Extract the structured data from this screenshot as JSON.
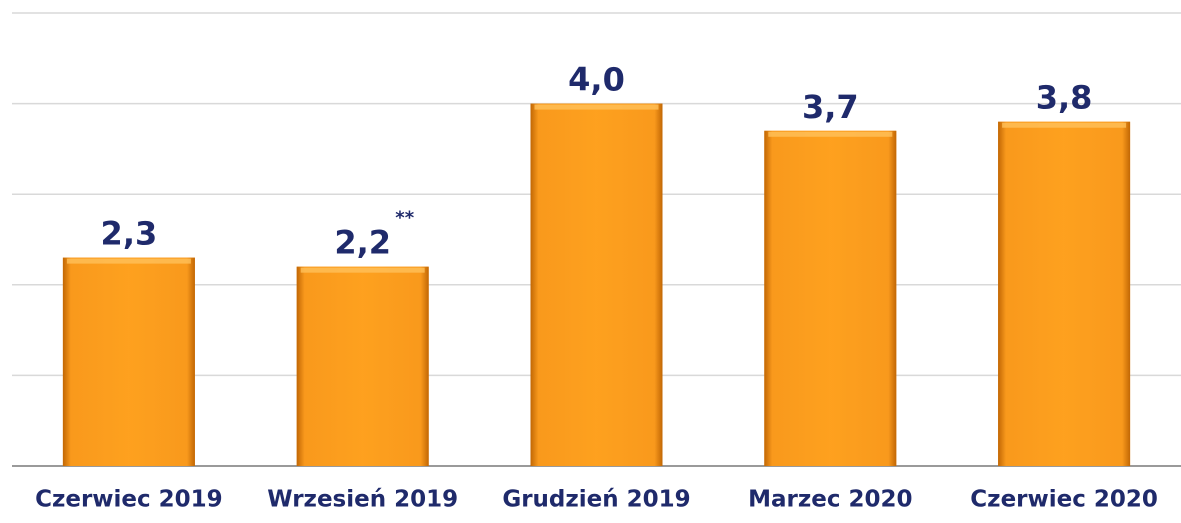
{
  "chart_data": {
    "type": "bar",
    "categories": [
      "Czerwiec 2019",
      "Wrzesień 2019",
      "Grudzień 2019",
      "Marzec 2020",
      "Czerwiec 2020"
    ],
    "values": [
      2.3,
      2.2,
      4.0,
      3.7,
      3.8
    ],
    "value_labels": [
      "2,3",
      "2,2",
      "4,0",
      "3,7",
      "3,8"
    ],
    "annotation": "**",
    "color": "#f7941d",
    "ylim": [
      0,
      5
    ],
    "yticks": [
      0,
      1,
      2,
      3,
      4,
      5
    ],
    "grid": true
  }
}
